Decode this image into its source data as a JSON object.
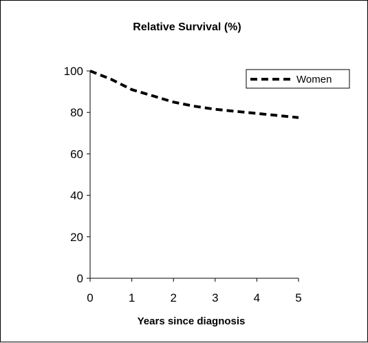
{
  "chart_data": {
    "type": "line",
    "title": "Relative Survival (%)",
    "xlabel": "Years since diagnosis",
    "ylabel": "",
    "xlim": [
      0,
      5
    ],
    "ylim": [
      0,
      100
    ],
    "x_ticks": [
      0,
      1,
      2,
      3,
      4,
      5
    ],
    "y_ticks": [
      0,
      20,
      40,
      60,
      80,
      100
    ],
    "grid": false,
    "legend_position": "top-right",
    "series": [
      {
        "name": "Women",
        "line_style": "dashed",
        "color": "#000000",
        "x": [
          0,
          0.5,
          1,
          1.5,
          2,
          2.5,
          3,
          3.5,
          4,
          4.5,
          5
        ],
        "y": [
          100,
          96,
          91,
          88,
          85,
          83,
          81.5,
          80.5,
          79.5,
          78.5,
          77.5
        ]
      }
    ]
  }
}
